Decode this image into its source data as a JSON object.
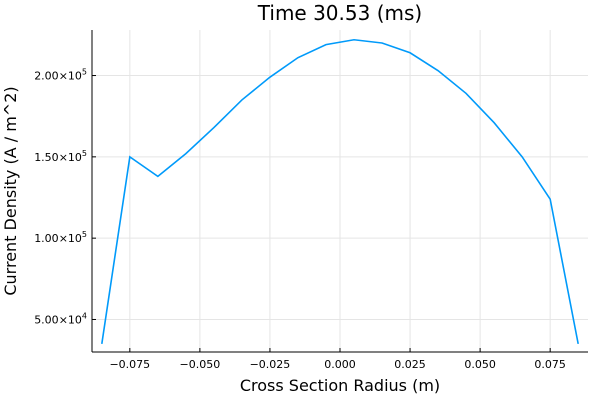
{
  "chart_data": {
    "type": "line",
    "title": "Time 30.53 (ms)",
    "xlabel": "Cross Section Radius (m)",
    "ylabel": "Current Density (A / m^2)",
    "xlim": [
      -0.0885,
      0.0885
    ],
    "ylim": [
      30000,
      228000
    ],
    "grid": true,
    "legend": "none",
    "x_ticks": [
      {
        "value": -0.075,
        "label": "−0.075"
      },
      {
        "value": -0.05,
        "label": "−0.050"
      },
      {
        "value": -0.025,
        "label": "−0.025"
      },
      {
        "value": 0.0,
        "label": "0.000"
      },
      {
        "value": 0.025,
        "label": "0.025"
      },
      {
        "value": 0.05,
        "label": "0.050"
      },
      {
        "value": 0.075,
        "label": "0.075"
      }
    ],
    "y_ticks": [
      {
        "value": 50000,
        "mantissa": "5.00",
        "base": "×10",
        "exp": "4"
      },
      {
        "value": 100000,
        "mantissa": "1.00",
        "base": "×10",
        "exp": "5"
      },
      {
        "value": 150000,
        "mantissa": "1.50",
        "base": "×10",
        "exp": "5"
      },
      {
        "value": 200000,
        "mantissa": "2.00",
        "base": "×10",
        "exp": "5"
      }
    ],
    "series": [
      {
        "name": "y1",
        "color": "#009AFA",
        "x": [
          -0.085,
          -0.075,
          -0.065,
          -0.055,
          -0.045,
          -0.035,
          -0.025,
          -0.015,
          -0.005,
          0.005,
          0.015,
          0.025,
          0.035,
          0.045,
          0.055,
          0.065,
          0.075,
          0.085
        ],
        "y": [
          35000,
          150000,
          138000,
          152000,
          168000,
          185000,
          199000,
          211000,
          219000,
          222000,
          220000,
          214000,
          203000,
          189000,
          171000,
          150000,
          124000,
          35000
        ]
      }
    ]
  }
}
